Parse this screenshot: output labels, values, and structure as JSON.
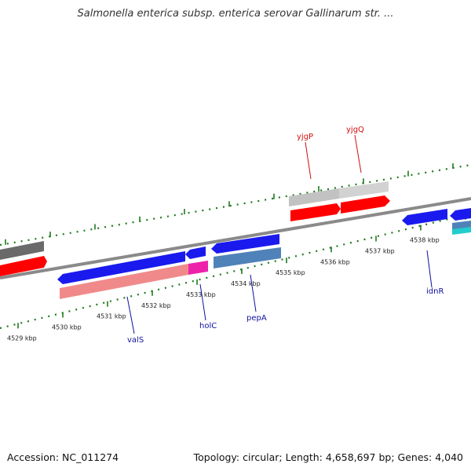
{
  "title": "Salmonella enterica subsp. enterica serovar Gallinarum str. ...",
  "footer": {
    "accession": "Accession: NC_011274",
    "summary": "Topology: circular; Length: 4,658,697 bp; Genes: 4,040"
  },
  "colors": {
    "backbone": "#8a8a8a",
    "tick_green": "#1f7a1f",
    "forward_gene": "#ff0000",
    "reverse_gene": "#1a1aee",
    "pseudo_gray": "#c8c8c8",
    "dark_gray": "#6a6a6a",
    "salmon": "#f08a8a",
    "magenta": "#ee22aa",
    "steel_blue": "#4f82b8",
    "cyan": "#22cccc",
    "label_red": "#d01010",
    "label_blue": "#1010a0"
  },
  "ticks": [
    "4529 kbp",
    "4530 kbp",
    "4531 kbp",
    "4532 kbp",
    "4533 kbp",
    "4534 kbp",
    "4535 kbp",
    "4536 kbp",
    "4537 kbp",
    "4538 kbp"
  ],
  "gene_labels": [
    {
      "name": "yjgP",
      "color": "label_red"
    },
    {
      "name": "yjgQ",
      "color": "label_red"
    },
    {
      "name": "valS",
      "color": "label_blue"
    },
    {
      "name": "holC",
      "color": "label_blue"
    },
    {
      "name": "pepA",
      "color": "label_blue"
    },
    {
      "name": "idnR",
      "color": "label_blue"
    }
  ]
}
